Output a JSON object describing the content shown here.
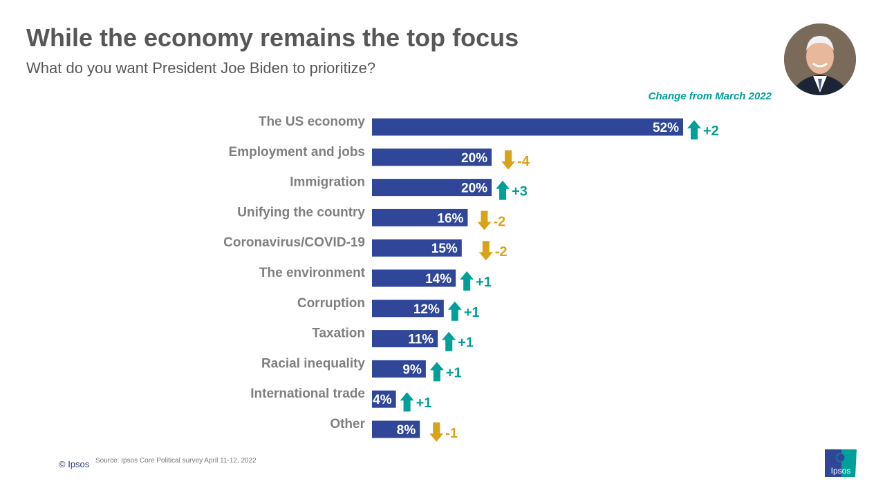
{
  "title": "While the economy remains the top focus",
  "subtitle": "What do you want President Joe Biden to prioritize?",
  "change_header": "Change from March 2022",
  "footer": {
    "copyright": "© Ipsos",
    "source": "Source: Ipsos Core Political survey April 11-12, 2022",
    "logo_text": "Ipsos"
  },
  "colors": {
    "bar": "#2f4699",
    "up": "#00a09a",
    "down": "#d9a21b",
    "label": "#7f7f7f"
  },
  "chart_data": {
    "type": "bar",
    "orientation": "horizontal",
    "categories": [
      "The US economy",
      "Employment and jobs",
      "Immigration",
      "Unifying  the country",
      "Coronavirus/COVID-19",
      "The environment",
      "Corruption",
      "Taxation",
      "Racial inequality",
      "International trade",
      "Other"
    ],
    "values": [
      52,
      20,
      20,
      16,
      15,
      14,
      12,
      11,
      9,
      4,
      8
    ],
    "value_labels": [
      "52%",
      "20%",
      "20%",
      "16%",
      "15%",
      "14%",
      "12%",
      "11%",
      "9%",
      "4%",
      "8%"
    ],
    "change": [
      2,
      -4,
      3,
      -2,
      -2,
      1,
      1,
      1,
      1,
      1,
      -1
    ],
    "change_labels": [
      "+2",
      "-4",
      "+3",
      "-2",
      "-2",
      "+1",
      "+1",
      "+1",
      "+1",
      "+1",
      "-1"
    ],
    "unit": "%"
  }
}
